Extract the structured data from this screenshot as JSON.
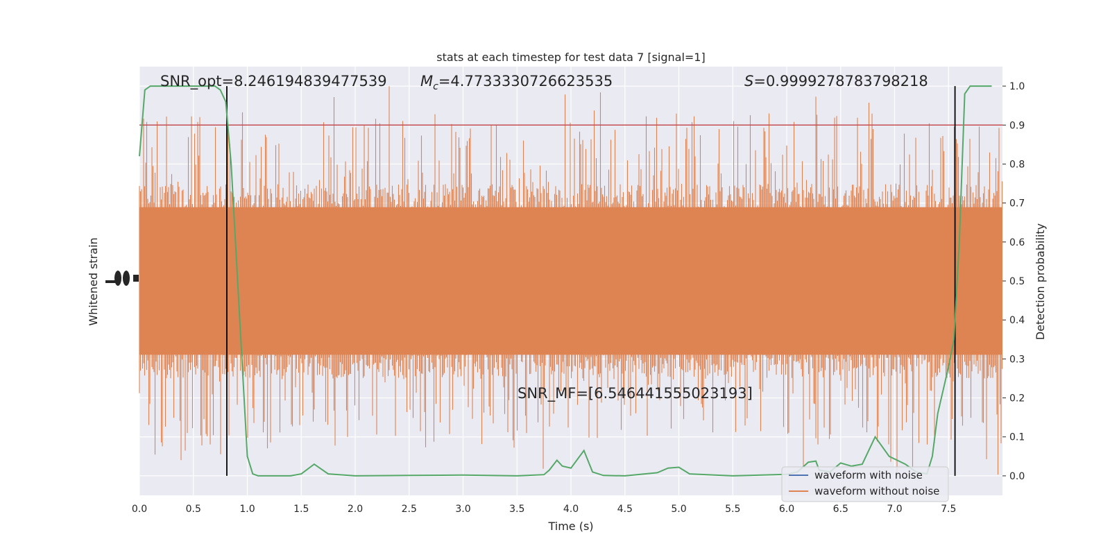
{
  "chart_data": {
    "type": "line",
    "title": "stats at each timestep for test data 7 [signal=1]",
    "xlabel": "Time (s)",
    "ylabel_left": "Whitened strain",
    "ylabel_right": "Detection probability",
    "xlim": [
      0.0,
      8.0
    ],
    "ylim_right": [
      -0.05,
      1.05
    ],
    "x_ticks": [
      "0.0",
      "0.5",
      "1.0",
      "1.5",
      "2.0",
      "2.5",
      "3.0",
      "3.5",
      "4.0",
      "4.5",
      "5.0",
      "5.5",
      "6.0",
      "6.5",
      "7.0",
      "7.5"
    ],
    "y_ticks_right": [
      "0.0",
      "0.1",
      "0.2",
      "0.3",
      "0.4",
      "0.5",
      "0.6",
      "0.7",
      "0.8",
      "0.9",
      "1.0"
    ],
    "grid": true,
    "legend_position": "lower-right",
    "annotations": {
      "snr_opt": "SNR_opt=8.246194839477539",
      "mc_symbol": "M",
      "mc_subscript": "c",
      "mc_value": "=4.7733330726623535",
      "s_symbol": "S",
      "s_value": "=0.9999278783798218",
      "snr_mf": "SNR_MF=[6.546441555023193]"
    },
    "threshold": 0.9,
    "vlines": [
      0.81,
      7.56
    ],
    "series": [
      {
        "name": "waveform with noise",
        "color": "#4c72b0",
        "note_visible": "legend only"
      },
      {
        "name": "waveform without noise",
        "color": "#dd8452",
        "style": "dense noisy strain",
        "center": 0.5,
        "band": [
          0.3,
          0.7
        ],
        "spike_range": [
          0.0,
          1.0
        ]
      },
      {
        "name": "",
        "color": "#55a868",
        "x": [
          0.0,
          0.05,
          0.1,
          0.2,
          0.3,
          0.4,
          0.5,
          0.6,
          0.7,
          0.75,
          0.8,
          0.85,
          0.9,
          0.95,
          1.0,
          1.05,
          1.1,
          1.2,
          1.3,
          1.4,
          1.5,
          1.62,
          1.75,
          2.0,
          2.5,
          3.0,
          3.5,
          3.75,
          3.8,
          3.87,
          3.92,
          4.0,
          4.12,
          4.2,
          4.3,
          4.5,
          4.8,
          4.9,
          5.0,
          5.1,
          5.5,
          6.0,
          6.1,
          6.2,
          6.27,
          6.3,
          6.4,
          6.5,
          6.6,
          6.7,
          6.82,
          6.95,
          7.1,
          7.2,
          7.3,
          7.35,
          7.4,
          7.45,
          7.5,
          7.55,
          7.6,
          7.65,
          7.7,
          7.9
        ],
        "y": [
          0.82,
          0.99,
          1.0,
          1.0,
          1.0,
          1.0,
          1.0,
          1.0,
          1.0,
          0.99,
          0.96,
          0.8,
          0.55,
          0.3,
          0.05,
          0.005,
          0.0,
          0.0,
          0.0,
          0.0,
          0.005,
          0.03,
          0.005,
          0.0,
          0.001,
          0.002,
          0.0,
          0.003,
          0.015,
          0.04,
          0.025,
          0.02,
          0.065,
          0.01,
          0.001,
          0.0,
          0.008,
          0.02,
          0.022,
          0.005,
          0.0,
          0.004,
          0.01,
          0.035,
          0.038,
          0.015,
          0.01,
          0.033,
          0.025,
          0.03,
          0.1,
          0.05,
          0.03,
          0.01,
          0.005,
          0.05,
          0.16,
          0.22,
          0.28,
          0.35,
          0.6,
          0.98,
          1.0,
          1.0
        ]
      }
    ]
  }
}
